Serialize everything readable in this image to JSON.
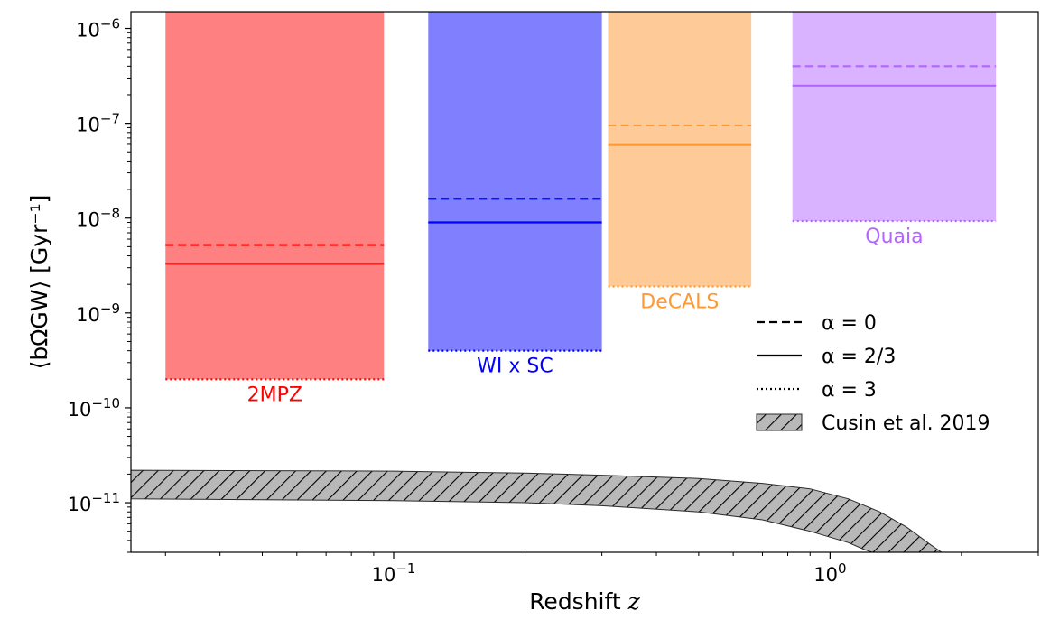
{
  "chart_data": {
    "type": "area",
    "xscale": "log",
    "yscale": "log",
    "xlim": [
      0.025,
      3.0
    ],
    "ylim": [
      3e-12,
      1.5e-06
    ],
    "xlabel": "Redshift",
    "xlabel_var": "z",
    "ylabel": "⟨bΩ̇GW⟩ [Gyr⁻¹]",
    "x_ticks": [
      {
        "value": 0.1,
        "base": "10",
        "exp": "−1"
      },
      {
        "value": 1.0,
        "base": "10",
        "exp": "0"
      }
    ],
    "y_ticks": [
      {
        "value": 1e-06,
        "base": "10",
        "exp": "−6"
      },
      {
        "value": 1e-07,
        "base": "10",
        "exp": "−7"
      },
      {
        "value": 1e-08,
        "base": "10",
        "exp": "−8"
      },
      {
        "value": 1e-09,
        "base": "10",
        "exp": "−9"
      },
      {
        "value": 1e-10,
        "base": "10",
        "exp": "−10"
      },
      {
        "value": 1e-11,
        "base": "10",
        "exp": "−11"
      }
    ],
    "surveys": [
      {
        "name": "2MPZ",
        "color": "#ff0000",
        "fill": "#ff8080",
        "z_min": 0.03,
        "z_max": 0.095,
        "alpha0": 5.2e-09,
        "alpha23": 3.3e-09,
        "alpha3": 2e-10
      },
      {
        "name": "WI x SC",
        "color": "#0000ff",
        "fill": "#8080ff",
        "z_min": 0.12,
        "z_max": 0.3,
        "alpha0": 1.6e-08,
        "alpha23": 9e-09,
        "alpha3": 4e-10
      },
      {
        "name": "DeCALS",
        "color": "#ff9933",
        "fill": "#fdca98",
        "z_min": 0.31,
        "z_max": 0.66,
        "alpha0": 9.5e-08,
        "alpha23": 5.9e-08,
        "alpha3": 1.9e-09
      },
      {
        "name": "Quaia",
        "color": "#b266ff",
        "fill": "#d9b3ff",
        "z_min": 0.82,
        "z_max": 2.4,
        "alpha0": 4e-07,
        "alpha23": 2.5e-07,
        "alpha3": 9.3e-09
      }
    ],
    "band": {
      "label": "Cusin et al. 2019",
      "upper": [
        [
          0.025,
          2.2e-11
        ],
        [
          0.1,
          2.15e-11
        ],
        [
          0.2,
          2.05e-11
        ],
        [
          0.3,
          1.95e-11
        ],
        [
          0.5,
          1.8e-11
        ],
        [
          0.7,
          1.6e-11
        ],
        [
          0.9,
          1.4e-11
        ],
        [
          1.1,
          1.1e-11
        ],
        [
          1.3,
          8e-12
        ],
        [
          1.5,
          5.5e-12
        ],
        [
          1.7,
          3.6e-12
        ],
        [
          1.8,
          3e-12
        ]
      ],
      "lower": [
        [
          0.025,
          1.1e-11
        ],
        [
          0.1,
          1.05e-11
        ],
        [
          0.2,
          1e-11
        ],
        [
          0.3,
          9.3e-12
        ],
        [
          0.5,
          8e-12
        ],
        [
          0.7,
          6.6e-12
        ],
        [
          0.9,
          5e-12
        ],
        [
          1.1,
          3.8e-12
        ],
        [
          1.2,
          3.2e-12
        ],
        [
          1.25,
          3e-12
        ]
      ]
    },
    "legend": {
      "placement": "center-right",
      "entries": [
        {
          "style": "dashed",
          "label": "α = 0"
        },
        {
          "style": "solid",
          "label": "α = 2/3"
        },
        {
          "style": "dotted",
          "label": "α = 3"
        },
        {
          "style": "hatch",
          "label": "Cusin et al. 2019"
        }
      ]
    }
  }
}
